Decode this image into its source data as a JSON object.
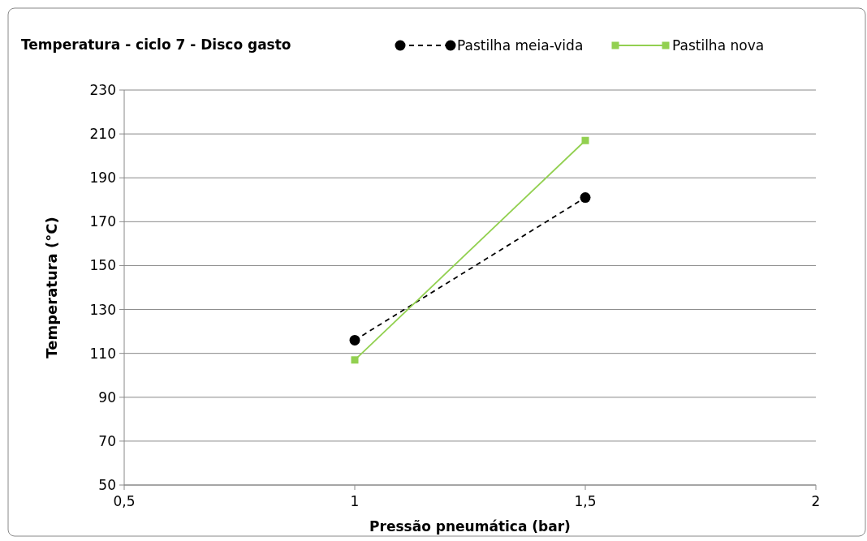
{
  "chart_data": {
    "type": "line",
    "title": "Temperatura - ciclo 7 - Disco gasto",
    "xlabel": "Pressão pneumática (bar)",
    "ylabel": "Temperatura (°C)",
    "x": [
      1,
      1.5
    ],
    "series": [
      {
        "name": "Pastilha meia-vida",
        "color": "#000000",
        "values": [
          116,
          181
        ],
        "marker": "circle",
        "line_style": "dashed"
      },
      {
        "name": "Pastilha nova",
        "color": "#92d050",
        "values": [
          107,
          207
        ],
        "marker": "square",
        "line_style": "solid"
      }
    ],
    "xlim": [
      0.5,
      2
    ],
    "xticks": [
      {
        "value": 0.5,
        "label": "0,5"
      },
      1,
      {
        "value": 1.5,
        "label": "1,5"
      },
      2
    ],
    "ylim": [
      50,
      230
    ],
    "yticks": [
      50,
      70,
      90,
      110,
      130,
      150,
      170,
      190,
      210,
      230
    ],
    "grid": "y",
    "legend": "top right"
  }
}
